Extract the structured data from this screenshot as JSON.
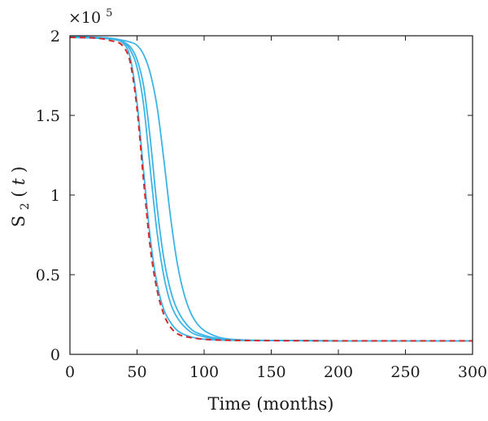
{
  "chart_data": {
    "type": "line",
    "title": "",
    "xlabel": "Time (months)",
    "ylabel": {
      "base": "S",
      "subscript": "2",
      "open": "(",
      "variable": "t",
      "close": ")"
    },
    "y_multiplier": {
      "prefix": "×10",
      "exponent": "5"
    },
    "xlim": [
      0,
      300
    ],
    "ylim": [
      0,
      2
    ],
    "xticks": [
      0,
      50,
      100,
      150,
      200,
      250,
      300
    ],
    "yticks": [
      0,
      0.5,
      1,
      1.5,
      2
    ],
    "ytick_labels": [
      "0",
      "0.5",
      "1",
      "1.5",
      "2"
    ],
    "grid": false,
    "legend": "none",
    "colors": {
      "blue": "#3bb4e6",
      "red": "#d42a2a"
    },
    "series": [
      {
        "style": "solid",
        "color": "#3bb4e6",
        "x": [
          0,
          20,
          30,
          40,
          45,
          50,
          55,
          60,
          65,
          70,
          75,
          80,
          90,
          100,
          110,
          120,
          150,
          200,
          300
        ],
        "y": [
          1.99,
          1.985,
          1.98,
          1.95,
          1.86,
          1.58,
          1.14,
          0.72,
          0.44,
          0.28,
          0.2,
          0.15,
          0.11,
          0.095,
          0.09,
          0.088,
          0.086,
          0.085,
          0.085
        ]
      },
      {
        "style": "solid",
        "color": "#3bb4e6",
        "x": [
          0,
          20,
          30,
          40,
          45,
          50,
          55,
          60,
          65,
          70,
          75,
          80,
          90,
          100,
          110,
          120,
          150,
          200,
          300
        ],
        "y": [
          1.99,
          1.985,
          1.98,
          1.96,
          1.91,
          1.8,
          1.56,
          1.15,
          0.76,
          0.49,
          0.32,
          0.23,
          0.14,
          0.11,
          0.095,
          0.09,
          0.087,
          0.085,
          0.085
        ]
      },
      {
        "style": "solid",
        "color": "#3bb4e6",
        "x": [
          0,
          20,
          30,
          40,
          45,
          50,
          55,
          60,
          65,
          70,
          75,
          80,
          90,
          100,
          110,
          120,
          150,
          200,
          300
        ],
        "y": [
          1.99,
          1.985,
          1.98,
          1.96,
          1.93,
          1.85,
          1.68,
          1.34,
          0.92,
          0.6,
          0.4,
          0.28,
          0.16,
          0.12,
          0.1,
          0.092,
          0.087,
          0.085,
          0.085
        ]
      },
      {
        "style": "solid",
        "color": "#3bb4e6",
        "x": [
          0,
          20,
          30,
          40,
          45,
          50,
          55,
          60,
          65,
          70,
          75,
          80,
          85,
          90,
          95,
          100,
          110,
          120,
          150,
          200,
          300
        ],
        "y": [
          1.995,
          1.99,
          1.985,
          1.97,
          1.96,
          1.94,
          1.88,
          1.76,
          1.55,
          1.22,
          0.86,
          0.57,
          0.38,
          0.26,
          0.19,
          0.15,
          0.11,
          0.095,
          0.088,
          0.085,
          0.085
        ]
      },
      {
        "style": "dashed",
        "color": "#d42a2a",
        "x": [
          0,
          20,
          30,
          40,
          45,
          50,
          55,
          60,
          65,
          70,
          75,
          80,
          90,
          100,
          110,
          120,
          150,
          200,
          300
        ],
        "y": [
          1.99,
          1.985,
          1.97,
          1.93,
          1.83,
          1.54,
          1.08,
          0.66,
          0.4,
          0.25,
          0.17,
          0.13,
          0.105,
          0.095,
          0.09,
          0.088,
          0.086,
          0.085,
          0.085
        ]
      }
    ]
  }
}
